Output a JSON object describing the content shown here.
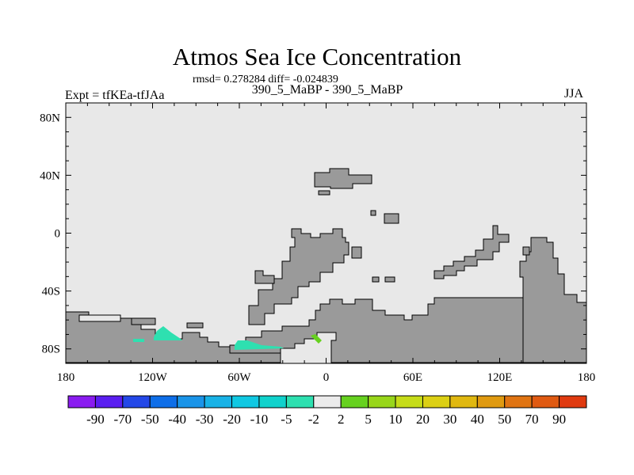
{
  "header": {
    "title": "Atmos Sea Ice Concentration",
    "stats": "rmsd= 0.278284 diff= -0.024839",
    "subtitle": "390_5_MaBP - 390_5_MaBP",
    "left_label": "Expt = tfKEa-tfJAa",
    "right_label": "JJA"
  },
  "map": {
    "extent": {
      "lon": [
        -180,
        180
      ],
      "lat": [
        -90,
        90
      ]
    },
    "y_tick_labels": [
      "80N",
      "40N",
      "0",
      "40S",
      "80S"
    ],
    "x_tick_labels": [
      "180",
      "120W",
      "60W",
      "0",
      "60E",
      "120E",
      "180"
    ],
    "colors": {
      "background": "#e8e8e8",
      "land": "#9a9a9a",
      "coastline": "#000000",
      "negative_anomaly": "#2ee0b0",
      "positive_anomaly": "#66d11f"
    }
  },
  "colorbar": {
    "labels": [
      "-90",
      "-70",
      "-50",
      "-40",
      "-30",
      "-20",
      "-10",
      "-5",
      "-2",
      "2",
      "5",
      "10",
      "20",
      "30",
      "40",
      "50",
      "70",
      "90"
    ],
    "colors": [
      "#8a1cf0",
      "#5a1ef0",
      "#2448e8",
      "#0e6ee8",
      "#1a94e8",
      "#18b2e6",
      "#10c8e2",
      "#10d2cc",
      "#2ee0b0",
      "#ebebeb",
      "#66d11f",
      "#98d61a",
      "#c6dc18",
      "#dcd014",
      "#e0b810",
      "#e09a10",
      "#e07412",
      "#e05a12",
      "#e03a10"
    ]
  }
}
